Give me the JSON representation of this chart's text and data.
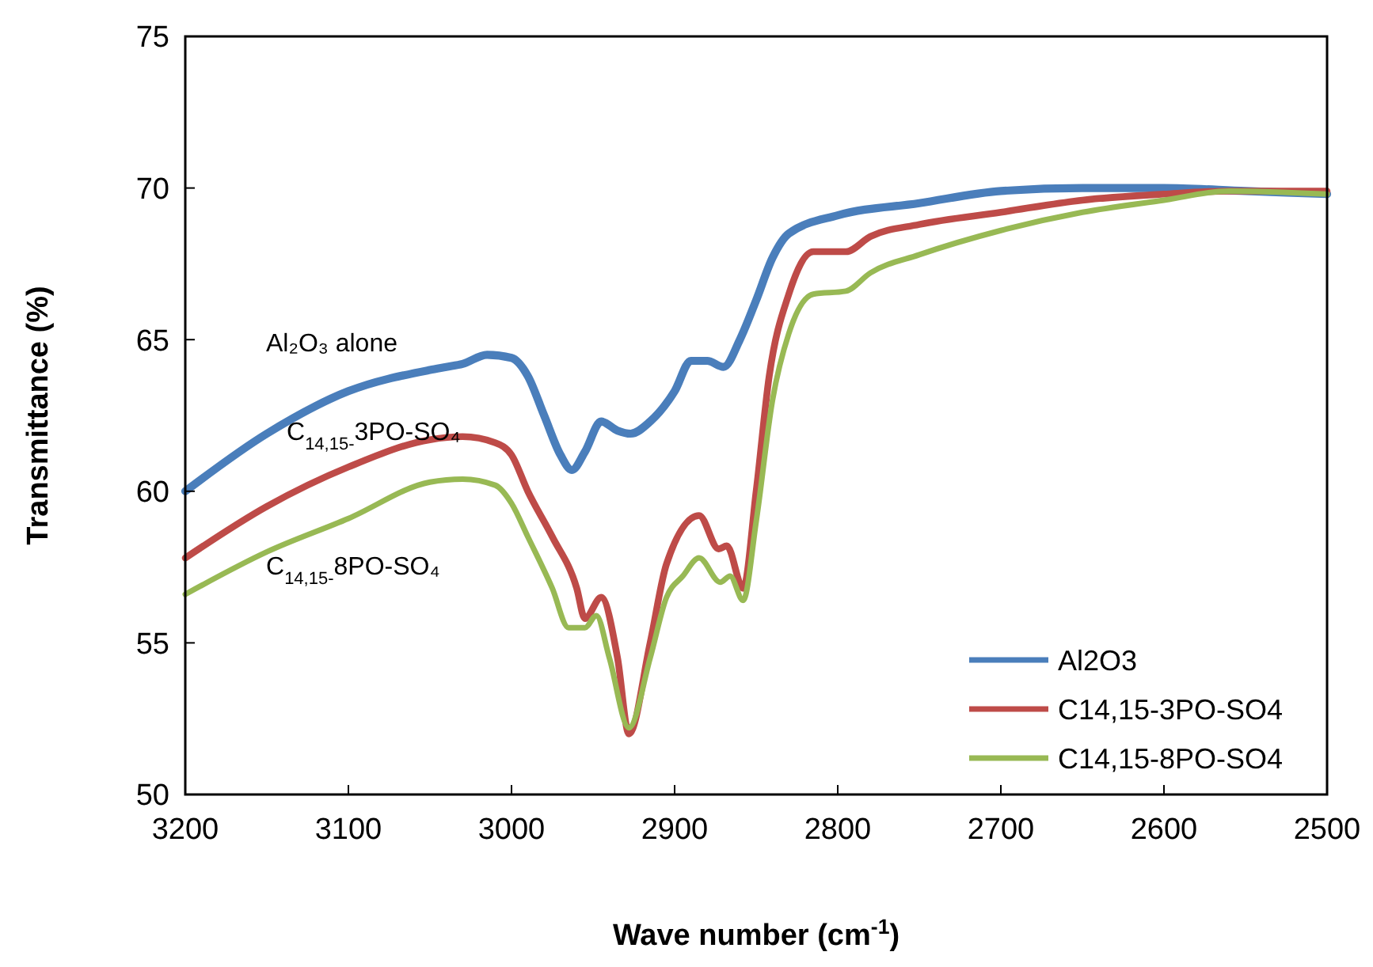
{
  "chart_data": {
    "type": "line",
    "xlabel": "Wave number (cm$^{-1}$)",
    "ylabel": "Transmittance (%)",
    "xlim": [
      3200,
      2500
    ],
    "xticks": [
      3200,
      3100,
      3000,
      2900,
      2800,
      2700,
      2600,
      2500
    ],
    "ylim": [
      50,
      75
    ],
    "yticks": [
      50,
      55,
      60,
      65,
      70,
      75
    ],
    "grid": false,
    "legend": "bottom right",
    "line_style": "solid",
    "marker": "none",
    "series": [
      {
        "name": "Al2O3",
        "color": "#4a7ebb",
        "x": [
          3200,
          3150,
          3100,
          3050,
          3040,
          3030,
          3015,
          3000,
          2990,
          2980,
          2970,
          2963,
          2955,
          2945,
          2935,
          2927,
          2915,
          2900,
          2890,
          2880,
          2870,
          2860,
          2850,
          2840,
          2830,
          2800,
          2750,
          2700,
          2650,
          2600,
          2550,
          2500
        ],
        "values": [
          60.0,
          61.9,
          63.3,
          64.0,
          64.1,
          64.2,
          64.5,
          64.4,
          63.8,
          62.5,
          61.2,
          60.7,
          61.3,
          62.3,
          62.0,
          61.9,
          62.3,
          63.3,
          64.3,
          64.3,
          64.1,
          65.0,
          66.3,
          67.7,
          68.5,
          69.1,
          69.5,
          69.9,
          70.0,
          70.0,
          69.9,
          69.8
        ]
      },
      {
        "name": "C14,15-3PO-SO4",
        "color": "#be4b48",
        "x": [
          3200,
          3150,
          3100,
          3050,
          3030,
          3010,
          3000,
          2990,
          2975,
          2960,
          2955,
          2945,
          2935,
          2928,
          2915,
          2905,
          2885,
          2873,
          2868,
          2858,
          2850,
          2842,
          2830,
          2815,
          2795,
          2780,
          2750,
          2700,
          2650,
          2600,
          2560,
          2500
        ],
        "values": [
          57.8,
          59.5,
          60.8,
          61.7,
          61.8,
          61.6,
          61.2,
          60.0,
          58.5,
          56.8,
          55.8,
          56.5,
          54.5,
          52.0,
          55.0,
          57.6,
          59.2,
          58.1,
          58.2,
          56.8,
          60.0,
          63.8,
          66.5,
          67.9,
          67.9,
          68.4,
          68.8,
          69.2,
          69.6,
          69.8,
          69.9,
          69.9
        ]
      },
      {
        "name": "C14,15-8PO-SO4",
        "color": "#98b954",
        "x": [
          3200,
          3150,
          3100,
          3050,
          3030,
          3010,
          3000,
          2990,
          2975,
          2965,
          2955,
          2948,
          2940,
          2928,
          2915,
          2905,
          2895,
          2885,
          2872,
          2866,
          2858,
          2850,
          2840,
          2830,
          2815,
          2795,
          2780,
          2750,
          2700,
          2650,
          2600,
          2560,
          2500
        ],
        "values": [
          56.6,
          58.0,
          59.1,
          60.3,
          60.4,
          60.2,
          59.6,
          58.5,
          56.8,
          55.5,
          55.5,
          55.9,
          54.5,
          52.2,
          54.5,
          56.5,
          57.2,
          57.8,
          57.0,
          57.2,
          56.4,
          59.0,
          63.0,
          65.2,
          66.5,
          66.6,
          67.2,
          67.8,
          68.6,
          69.2,
          69.6,
          69.9,
          69.8
        ]
      }
    ],
    "annotations": [
      "Al₂O₃ alone",
      "C$_{14,15-}$3PO-SO₄",
      "C$_{14,15-}$8PO-SO₄"
    ]
  }
}
